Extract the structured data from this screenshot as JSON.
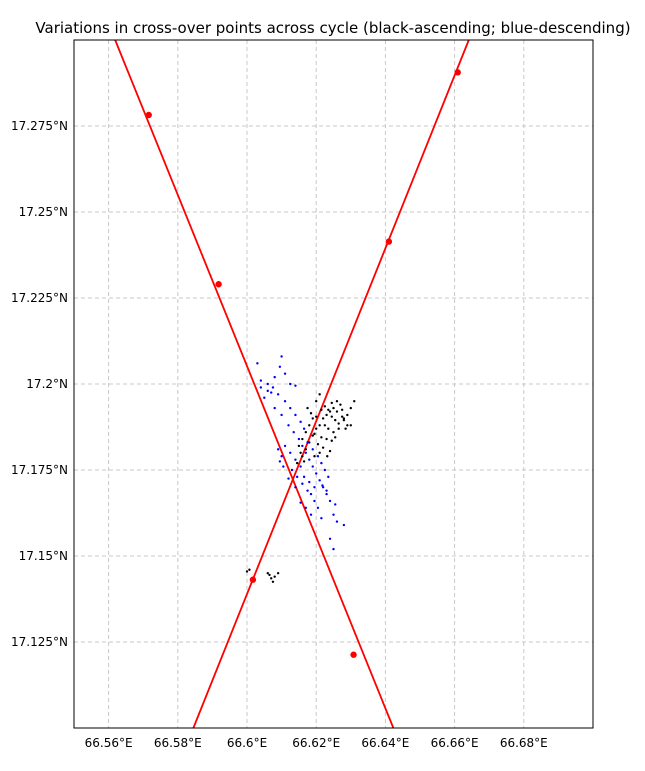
{
  "chart_data": {
    "type": "scatter",
    "title": "Variations in cross-over points across cycle (black-ascending; blue-descending)",
    "xlabel": "",
    "ylabel": "",
    "xlim": [
      66.55,
      66.7
    ],
    "ylim": [
      17.1,
      17.3
    ],
    "grid": true,
    "x_ticks": [
      66.56,
      66.58,
      66.6,
      66.62,
      66.64,
      66.66,
      66.68
    ],
    "x_tick_labels": [
      "66.56°E",
      "66.58°E",
      "66.6°E",
      "66.62°E",
      "66.64°E",
      "66.66°E",
      "66.68°E"
    ],
    "y_ticks": [
      17.125,
      17.15,
      17.175,
      17.2,
      17.225,
      17.25,
      17.275
    ],
    "y_tick_labels": [
      "17.125°N",
      "17.15°N",
      "17.175°N",
      "17.2°N",
      "17.225°N",
      "17.25°N",
      "17.275°N"
    ],
    "lines": [
      {
        "color": "#ff0000",
        "x": [
          66.5619,
          66.6423
        ],
        "y": [
          17.3,
          17.1
        ],
        "markers": [
          [
            66.5716,
            17.2782
          ],
          [
            66.5918,
            17.229
          ],
          [
            66.6017,
            17.1431
          ],
          [
            66.6308,
            17.1213
          ]
        ]
      },
      {
        "color": "#ff0000",
        "x": [
          66.5845,
          66.6641
        ],
        "y": [
          17.1,
          17.3
        ],
        "markers": [
          [
            66.6609,
            17.2906
          ],
          [
            66.641,
            17.2414
          ]
        ]
      }
    ],
    "series": [
      {
        "color": "#000000",
        "points": [
          [
            66.6145,
            17.177
          ],
          [
            66.616,
            17.179
          ],
          [
            66.617,
            17.181
          ],
          [
            66.618,
            17.183
          ],
          [
            66.619,
            17.185
          ],
          [
            66.62,
            17.187
          ],
          [
            66.621,
            17.188
          ],
          [
            66.622,
            17.19
          ],
          [
            66.623,
            17.191
          ],
          [
            66.624,
            17.192
          ],
          [
            66.625,
            17.193
          ],
          [
            66.626,
            17.192
          ],
          [
            66.627,
            17.194
          ],
          [
            66.628,
            17.19
          ],
          [
            66.629,
            17.188
          ],
          [
            66.63,
            17.193
          ],
          [
            66.631,
            17.195
          ],
          [
            66.62,
            17.195
          ],
          [
            66.621,
            17.197
          ],
          [
            66.6225,
            17.1935
          ],
          [
            66.6235,
            17.1925
          ],
          [
            66.6245,
            17.1905
          ],
          [
            66.6255,
            17.1895
          ],
          [
            66.6265,
            17.1885
          ],
          [
            66.6275,
            17.1905
          ],
          [
            66.6285,
            17.187
          ],
          [
            66.619,
            17.19
          ],
          [
            66.618,
            17.188
          ],
          [
            66.617,
            17.186
          ],
          [
            66.616,
            17.184
          ],
          [
            66.615,
            17.182
          ],
          [
            66.6215,
            17.1845
          ],
          [
            66.623,
            17.184
          ],
          [
            66.6245,
            17.1835
          ],
          [
            66.6255,
            17.1845
          ],
          [
            66.6195,
            17.1855
          ],
          [
            66.6205,
            17.1825
          ],
          [
            66.622,
            17.1815
          ],
          [
            66.624,
            17.1805
          ],
          [
            66.625,
            17.186
          ],
          [
            66.6265,
            17.187
          ],
          [
            66.628,
            17.1895
          ],
          [
            66.629,
            17.191
          ],
          [
            66.6175,
            17.193
          ],
          [
            66.6185,
            17.1915
          ],
          [
            66.62,
            17.1905
          ],
          [
            66.6155,
            17.18
          ],
          [
            66.6165,
            17.1775
          ],
          [
            66.621,
            17.18
          ],
          [
            66.6225,
            17.188
          ],
          [
            66.6235,
            17.187
          ],
          [
            66.6215,
            17.1925
          ],
          [
            66.6245,
            17.1945
          ],
          [
            66.626,
            17.195
          ],
          [
            66.6275,
            17.1925
          ],
          [
            66.6195,
            17.179
          ],
          [
            66.6232,
            17.179
          ],
          [
            66.63,
            17.188
          ],
          [
            66.6,
            17.1455
          ],
          [
            66.6007,
            17.146
          ],
          [
            66.606,
            17.145
          ],
          [
            66.607,
            17.1435
          ],
          [
            66.6075,
            17.1425
          ],
          [
            66.608,
            17.144
          ],
          [
            66.609,
            17.145
          ],
          [
            66.6065,
            17.1445
          ]
        ]
      },
      {
        "color": "#0000ff",
        "points": [
          [
            66.604,
            17.199
          ],
          [
            66.606,
            17.198
          ],
          [
            66.608,
            17.202
          ],
          [
            66.61,
            17.208
          ],
          [
            66.611,
            17.203
          ],
          [
            66.6125,
            17.2
          ],
          [
            66.614,
            17.1995
          ],
          [
            66.6095,
            17.205
          ],
          [
            66.6075,
            17.199
          ],
          [
            66.606,
            17.2
          ],
          [
            66.603,
            17.206
          ],
          [
            66.605,
            17.196
          ],
          [
            66.608,
            17.193
          ],
          [
            66.61,
            17.191
          ],
          [
            66.612,
            17.188
          ],
          [
            66.6135,
            17.186
          ],
          [
            66.615,
            17.184
          ],
          [
            66.616,
            17.182
          ],
          [
            66.617,
            17.18
          ],
          [
            66.618,
            17.178
          ],
          [
            66.619,
            17.176
          ],
          [
            66.62,
            17.174
          ],
          [
            66.621,
            17.172
          ],
          [
            66.622,
            17.17
          ],
          [
            66.623,
            17.168
          ],
          [
            66.624,
            17.166
          ],
          [
            66.6255,
            17.165
          ],
          [
            66.625,
            17.162
          ],
          [
            66.626,
            17.16
          ],
          [
            66.628,
            17.159
          ],
          [
            66.624,
            17.155
          ],
          [
            66.625,
            17.152
          ],
          [
            66.6155,
            17.176
          ],
          [
            66.614,
            17.178
          ],
          [
            66.6125,
            17.18
          ],
          [
            66.611,
            17.182
          ],
          [
            66.61,
            17.179
          ],
          [
            66.609,
            17.181
          ],
          [
            66.613,
            17.175
          ],
          [
            66.6145,
            17.173
          ],
          [
            66.616,
            17.171
          ],
          [
            66.6175,
            17.169
          ],
          [
            66.6185,
            17.168
          ],
          [
            66.6195,
            17.166
          ],
          [
            66.6205,
            17.164
          ],
          [
            66.6215,
            17.161
          ],
          [
            66.6175,
            17.183
          ],
          [
            66.619,
            17.181
          ],
          [
            66.6205,
            17.179
          ],
          [
            66.6215,
            17.177
          ],
          [
            66.6225,
            17.175
          ],
          [
            66.6235,
            17.173
          ],
          [
            66.611,
            17.195
          ],
          [
            66.6125,
            17.193
          ],
          [
            66.614,
            17.191
          ],
          [
            66.6155,
            17.189
          ],
          [
            66.6165,
            17.187
          ],
          [
            66.609,
            17.197
          ],
          [
            66.607,
            17.1975
          ],
          [
            66.604,
            17.201
          ],
          [
            66.6165,
            17.173
          ],
          [
            66.618,
            17.1715
          ],
          [
            66.6195,
            17.17
          ],
          [
            66.6155,
            17.1655
          ],
          [
            66.617,
            17.164
          ],
          [
            66.6185,
            17.162
          ],
          [
            66.614,
            17.17
          ],
          [
            66.612,
            17.1725
          ],
          [
            66.6095,
            17.1775
          ],
          [
            66.6105,
            17.176
          ],
          [
            66.623,
            17.169
          ],
          [
            66.6218,
            17.1705
          ]
        ]
      }
    ]
  }
}
